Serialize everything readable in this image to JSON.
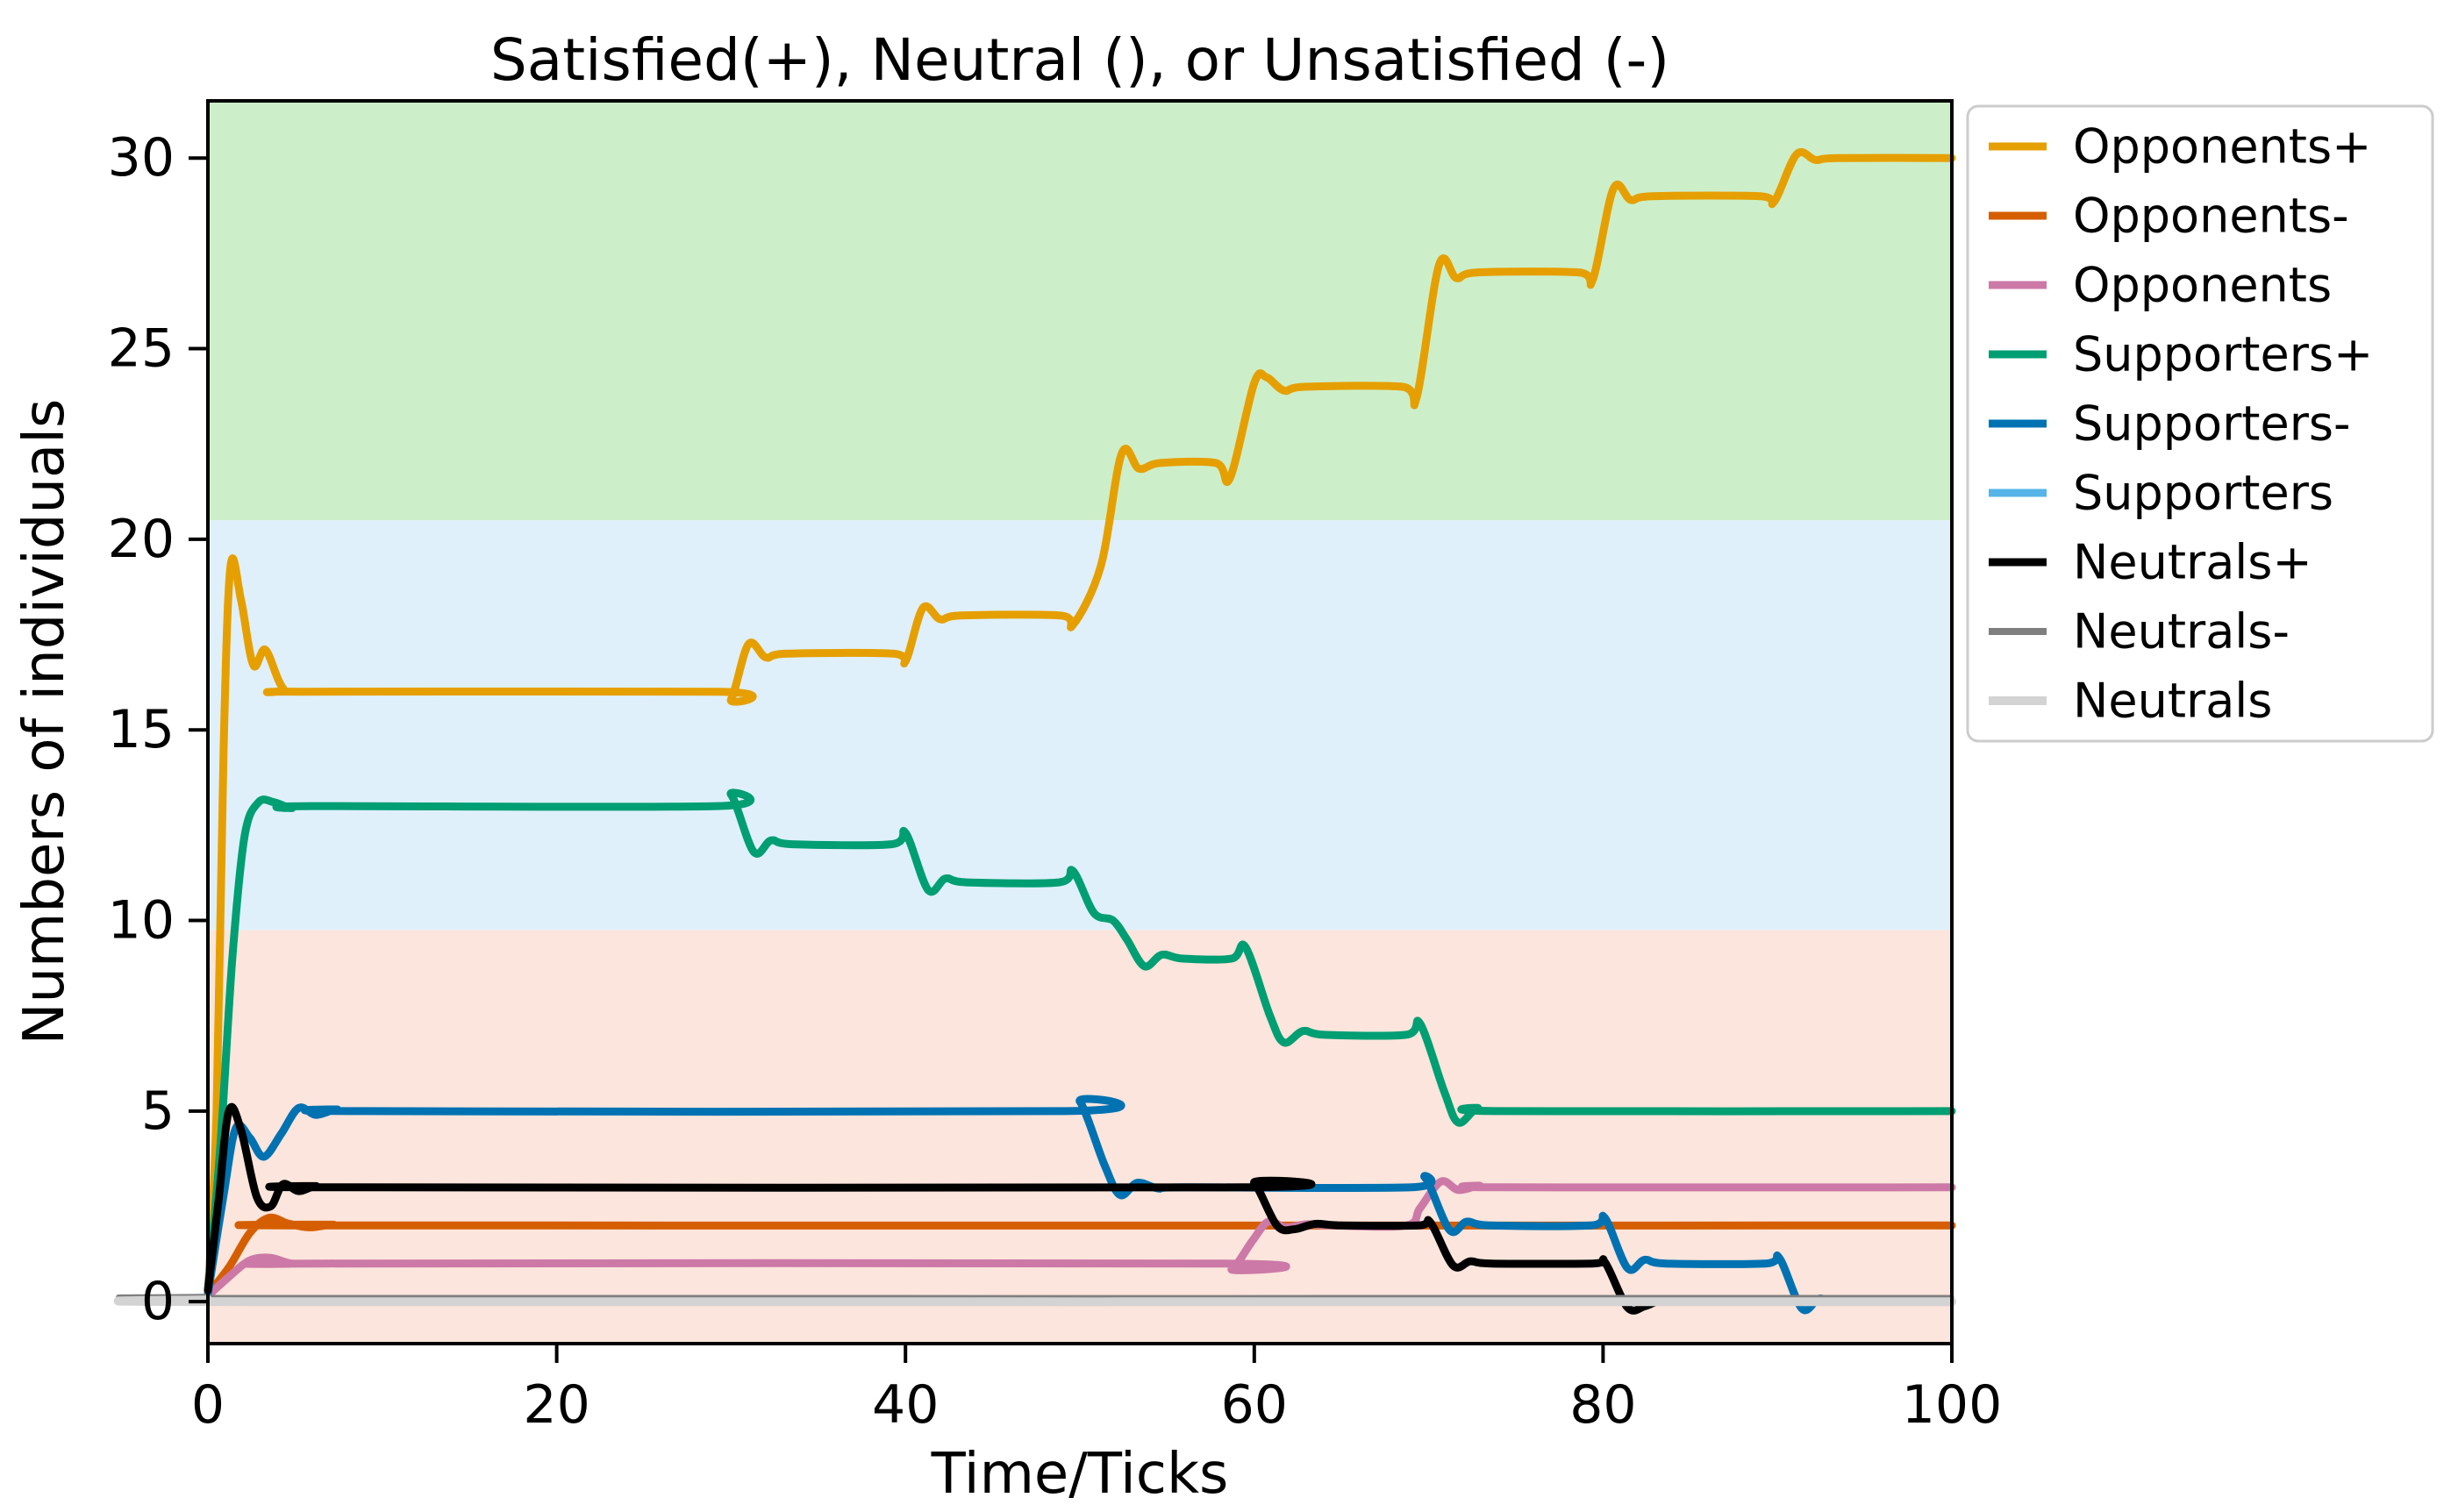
{
  "chart_data": {
    "type": "line",
    "title": "Satisfied(+), Neutral (), or Unsatisfied (-)",
    "xlabel": "Time/Ticks",
    "ylabel": "Numbers of individuals",
    "xlim": [
      0,
      100
    ],
    "ylim": [
      -1.1,
      31.5
    ],
    "xticks": [
      0,
      20,
      40,
      60,
      80,
      100
    ],
    "yticks": [
      0,
      5,
      10,
      15,
      20,
      25,
      30
    ],
    "grid": false,
    "legend_position": "outside-upper-right",
    "axis_color": "#000000",
    "background_bands": [
      {
        "zone": "unsatisfied-zone",
        "from": -1.1,
        "to": 9.75,
        "color": "#FCE5DC"
      },
      {
        "zone": "neutral-zone",
        "from": 9.75,
        "to": 20.5,
        "color": "#DFF0FB"
      },
      {
        "zone": "satisfied-zone",
        "from": 20.5,
        "to": 31.5,
        "color": "#CCEFC9"
      }
    ],
    "series": [
      {
        "name": "Opponents+",
        "color": "#E69F00",
        "lw": 9,
        "points": [
          [
            0,
            0.2
          ],
          [
            0.5,
            5
          ],
          [
            0.9,
            14.5
          ],
          [
            1.3,
            19.3
          ],
          [
            1.9,
            18.4
          ],
          [
            2.6,
            16.7
          ],
          [
            3.3,
            17.1
          ],
          [
            4.3,
            16.1
          ],
          [
            5.5,
            16
          ],
          [
            29.3,
            16
          ],
          [
            30,
            15.8
          ],
          [
            31,
            17.25
          ],
          [
            32,
            16.9
          ],
          [
            33.2,
            17
          ],
          [
            39.3,
            17
          ],
          [
            40,
            16.8
          ],
          [
            41,
            18.2
          ],
          [
            42,
            17.9
          ],
          [
            43.2,
            18
          ],
          [
            48.9,
            18
          ],
          [
            49.6,
            17.75
          ],
          [
            51.2,
            19.3
          ],
          [
            52.4,
            22.25
          ],
          [
            53.4,
            21.85
          ],
          [
            54.6,
            22
          ],
          [
            57.8,
            22
          ],
          [
            58.6,
            21.6
          ],
          [
            60,
            24.1
          ],
          [
            60.7,
            24.25
          ],
          [
            61.7,
            23.9
          ],
          [
            62.9,
            24
          ],
          [
            68.5,
            24
          ],
          [
            69.3,
            23.7
          ],
          [
            70.6,
            27.2
          ],
          [
            71.6,
            26.85
          ],
          [
            72.8,
            27
          ],
          [
            78.6,
            27
          ],
          [
            79.4,
            26.8
          ],
          [
            80.6,
            29.2
          ],
          [
            81.6,
            28.9
          ],
          [
            82.8,
            29
          ],
          [
            89,
            29
          ],
          [
            89.8,
            28.85
          ],
          [
            91.1,
            30.1
          ],
          [
            92.2,
            29.95
          ],
          [
            93.4,
            30
          ],
          [
            100,
            30
          ]
        ]
      },
      {
        "name": "Opponents-",
        "color": "#D55E00",
        "lw": 9,
        "points": [
          [
            0,
            0.2
          ],
          [
            1.2,
            0.9
          ],
          [
            2.4,
            1.8
          ],
          [
            3.5,
            2.2
          ],
          [
            4.6,
            2.05
          ],
          [
            5.8,
            1.95
          ],
          [
            7.2,
            2.02
          ],
          [
            9,
            2
          ],
          [
            100,
            2
          ]
        ]
      },
      {
        "name": "Opponents",
        "color": "#CC79A7",
        "lw": 9,
        "points": [
          [
            0,
            0.15
          ],
          [
            1.2,
            0.65
          ],
          [
            2.4,
            1.08
          ],
          [
            3.6,
            1.15
          ],
          [
            4.8,
            1
          ],
          [
            6.5,
            1
          ],
          [
            57.8,
            1
          ],
          [
            58.7,
            0.85
          ],
          [
            59.9,
            1.6
          ],
          [
            60.8,
            2.1
          ],
          [
            61.8,
            1.95
          ],
          [
            63,
            2.03
          ],
          [
            64.5,
            2
          ],
          [
            68.7,
            2
          ],
          [
            69.5,
            2.45
          ],
          [
            70.7,
            3.15
          ],
          [
            71.7,
            2.93
          ],
          [
            72.9,
            3.04
          ],
          [
            74.2,
            3
          ],
          [
            100,
            3
          ]
        ]
      },
      {
        "name": "Supporters+",
        "color": "#009E73",
        "lw": 9,
        "points": [
          [
            0,
            0.3
          ],
          [
            0.7,
            4
          ],
          [
            1.4,
            9
          ],
          [
            2.1,
            12.2
          ],
          [
            2.9,
            13.1
          ],
          [
            3.8,
            13.1
          ],
          [
            4.8,
            12.95
          ],
          [
            6,
            13
          ],
          [
            29.2,
            13
          ],
          [
            30,
            13.3
          ],
          [
            31.3,
            11.8
          ],
          [
            32.3,
            12.1
          ],
          [
            33.5,
            12
          ],
          [
            39.2,
            12
          ],
          [
            40,
            12.3
          ],
          [
            41.3,
            10.8
          ],
          [
            42.3,
            11.1
          ],
          [
            43.5,
            11
          ],
          [
            48.8,
            11
          ],
          [
            49.6,
            11.3
          ],
          [
            50.8,
            10.2
          ],
          [
            51.9,
            10
          ],
          [
            52.7,
            9.5
          ],
          [
            53.7,
            8.8
          ],
          [
            54.7,
            9.1
          ],
          [
            55.9,
            9
          ],
          [
            58.7,
            9
          ],
          [
            59.5,
            9.3
          ],
          [
            60.9,
            7.5
          ],
          [
            61.7,
            6.8
          ],
          [
            62.8,
            7.1
          ],
          [
            64,
            7
          ],
          [
            68.7,
            7
          ],
          [
            69.5,
            7.3
          ],
          [
            70.9,
            5.5
          ],
          [
            71.7,
            4.7
          ],
          [
            72.8,
            5.07
          ],
          [
            74.2,
            5
          ],
          [
            100,
            5
          ]
        ]
      },
      {
        "name": "Supporters-",
        "color": "#0072B2",
        "lw": 9,
        "points": [
          [
            0,
            0.2
          ],
          [
            0.9,
            2.8
          ],
          [
            1.6,
            4.55
          ],
          [
            2.4,
            4.3
          ],
          [
            3.2,
            3.8
          ],
          [
            4.2,
            4.4
          ],
          [
            5.2,
            5.08
          ],
          [
            6.2,
            4.9
          ],
          [
            7.4,
            5.04
          ],
          [
            9,
            5
          ],
          [
            49.2,
            5
          ],
          [
            50,
            5.25
          ],
          [
            51.4,
            3.6
          ],
          [
            52.3,
            2.8
          ],
          [
            53.3,
            3.12
          ],
          [
            54.5,
            2.97
          ],
          [
            56,
            3
          ],
          [
            69,
            3
          ],
          [
            69.8,
            3.25
          ],
          [
            71.2,
            1.88
          ],
          [
            72.2,
            2.1
          ],
          [
            73.5,
            2
          ],
          [
            79.3,
            2
          ],
          [
            80.1,
            2.2
          ],
          [
            81.4,
            0.88
          ],
          [
            82.4,
            1.1
          ],
          [
            83.6,
            1
          ],
          [
            89.3,
            1
          ],
          [
            90.1,
            1.15
          ],
          [
            91.4,
            -0.18
          ],
          [
            92.4,
            0.08
          ],
          [
            93.6,
            0
          ],
          [
            100,
            0
          ]
        ]
      },
      {
        "name": "Supporters",
        "color": "#56B4E9",
        "lw": 9,
        "points": [
          [
            0,
            0.1
          ],
          [
            3,
            0
          ],
          [
            100,
            0
          ]
        ]
      },
      {
        "name": "Neutrals+",
        "color": "#000000",
        "lw": 9,
        "points": [
          [
            0,
            0.3
          ],
          [
            0.6,
            2.6
          ],
          [
            1.2,
            5
          ],
          [
            1.9,
            4.5
          ],
          [
            2.8,
            2.75
          ],
          [
            3.6,
            2.5
          ],
          [
            4.3,
            3.08
          ],
          [
            5.2,
            2.9
          ],
          [
            6.2,
            3.03
          ],
          [
            7.8,
            3
          ],
          [
            59.3,
            3
          ],
          [
            60,
            3.12
          ],
          [
            61.3,
            2
          ],
          [
            62.3,
            1.9
          ],
          [
            63.5,
            2.04
          ],
          [
            65,
            2
          ],
          [
            69.4,
            2
          ],
          [
            70.1,
            2.08
          ],
          [
            71.4,
            0.95
          ],
          [
            72.4,
            1.06
          ],
          [
            73.6,
            1
          ],
          [
            79.4,
            1
          ],
          [
            80.1,
            1.04
          ],
          [
            81.4,
            -0.15
          ],
          [
            82.4,
            -0.12
          ],
          [
            83.4,
            0.04
          ],
          [
            85,
            0
          ],
          [
            100,
            0
          ]
        ]
      },
      {
        "name": "Neutrals-",
        "color": "#7F7F7F",
        "lw": 5,
        "points": [
          [
            0,
            0.15
          ],
          [
            3,
            0.12
          ],
          [
            100,
            0.12
          ]
        ]
      },
      {
        "name": "Neutrals",
        "color": "#D3D3D3",
        "lw": 10,
        "points": [
          [
            0,
            0.05
          ],
          [
            3,
            0
          ],
          [
            100,
            0
          ]
        ]
      }
    ]
  },
  "legend": {
    "border_color": "#CCCCCC",
    "background": "#FFFFFF"
  }
}
